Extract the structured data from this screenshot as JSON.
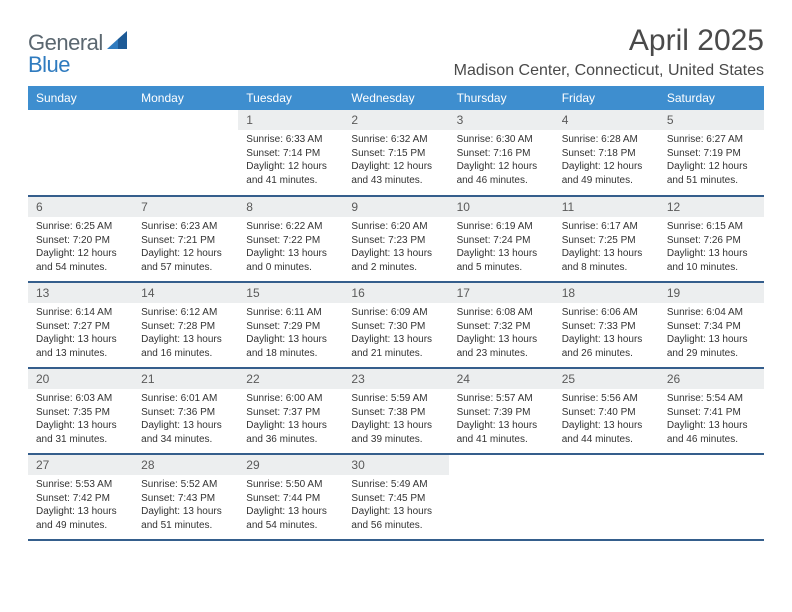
{
  "brand": {
    "text1": "General",
    "text2": "Blue"
  },
  "title": "April 2025",
  "location": "Madison Center, Connecticut, United States",
  "colors": {
    "header_bg": "#3e8ecf",
    "header_text": "#ffffff",
    "daynum_bg": "#eceeef",
    "row_border": "#355e8c",
    "logo_gray": "#5b6770",
    "logo_blue": "#2f7bbf"
  },
  "weekdays": [
    "Sunday",
    "Monday",
    "Tuesday",
    "Wednesday",
    "Thursday",
    "Friday",
    "Saturday"
  ],
  "weeks": [
    [
      {
        "n": "",
        "sunrise": "",
        "sunset": "",
        "daylight": ""
      },
      {
        "n": "",
        "sunrise": "",
        "sunset": "",
        "daylight": ""
      },
      {
        "n": "1",
        "sunrise": "Sunrise: 6:33 AM",
        "sunset": "Sunset: 7:14 PM",
        "daylight": "Daylight: 12 hours and 41 minutes."
      },
      {
        "n": "2",
        "sunrise": "Sunrise: 6:32 AM",
        "sunset": "Sunset: 7:15 PM",
        "daylight": "Daylight: 12 hours and 43 minutes."
      },
      {
        "n": "3",
        "sunrise": "Sunrise: 6:30 AM",
        "sunset": "Sunset: 7:16 PM",
        "daylight": "Daylight: 12 hours and 46 minutes."
      },
      {
        "n": "4",
        "sunrise": "Sunrise: 6:28 AM",
        "sunset": "Sunset: 7:18 PM",
        "daylight": "Daylight: 12 hours and 49 minutes."
      },
      {
        "n": "5",
        "sunrise": "Sunrise: 6:27 AM",
        "sunset": "Sunset: 7:19 PM",
        "daylight": "Daylight: 12 hours and 51 minutes."
      }
    ],
    [
      {
        "n": "6",
        "sunrise": "Sunrise: 6:25 AM",
        "sunset": "Sunset: 7:20 PM",
        "daylight": "Daylight: 12 hours and 54 minutes."
      },
      {
        "n": "7",
        "sunrise": "Sunrise: 6:23 AM",
        "sunset": "Sunset: 7:21 PM",
        "daylight": "Daylight: 12 hours and 57 minutes."
      },
      {
        "n": "8",
        "sunrise": "Sunrise: 6:22 AM",
        "sunset": "Sunset: 7:22 PM",
        "daylight": "Daylight: 13 hours and 0 minutes."
      },
      {
        "n": "9",
        "sunrise": "Sunrise: 6:20 AM",
        "sunset": "Sunset: 7:23 PM",
        "daylight": "Daylight: 13 hours and 2 minutes."
      },
      {
        "n": "10",
        "sunrise": "Sunrise: 6:19 AM",
        "sunset": "Sunset: 7:24 PM",
        "daylight": "Daylight: 13 hours and 5 minutes."
      },
      {
        "n": "11",
        "sunrise": "Sunrise: 6:17 AM",
        "sunset": "Sunset: 7:25 PM",
        "daylight": "Daylight: 13 hours and 8 minutes."
      },
      {
        "n": "12",
        "sunrise": "Sunrise: 6:15 AM",
        "sunset": "Sunset: 7:26 PM",
        "daylight": "Daylight: 13 hours and 10 minutes."
      }
    ],
    [
      {
        "n": "13",
        "sunrise": "Sunrise: 6:14 AM",
        "sunset": "Sunset: 7:27 PM",
        "daylight": "Daylight: 13 hours and 13 minutes."
      },
      {
        "n": "14",
        "sunrise": "Sunrise: 6:12 AM",
        "sunset": "Sunset: 7:28 PM",
        "daylight": "Daylight: 13 hours and 16 minutes."
      },
      {
        "n": "15",
        "sunrise": "Sunrise: 6:11 AM",
        "sunset": "Sunset: 7:29 PM",
        "daylight": "Daylight: 13 hours and 18 minutes."
      },
      {
        "n": "16",
        "sunrise": "Sunrise: 6:09 AM",
        "sunset": "Sunset: 7:30 PM",
        "daylight": "Daylight: 13 hours and 21 minutes."
      },
      {
        "n": "17",
        "sunrise": "Sunrise: 6:08 AM",
        "sunset": "Sunset: 7:32 PM",
        "daylight": "Daylight: 13 hours and 23 minutes."
      },
      {
        "n": "18",
        "sunrise": "Sunrise: 6:06 AM",
        "sunset": "Sunset: 7:33 PM",
        "daylight": "Daylight: 13 hours and 26 minutes."
      },
      {
        "n": "19",
        "sunrise": "Sunrise: 6:04 AM",
        "sunset": "Sunset: 7:34 PM",
        "daylight": "Daylight: 13 hours and 29 minutes."
      }
    ],
    [
      {
        "n": "20",
        "sunrise": "Sunrise: 6:03 AM",
        "sunset": "Sunset: 7:35 PM",
        "daylight": "Daylight: 13 hours and 31 minutes."
      },
      {
        "n": "21",
        "sunrise": "Sunrise: 6:01 AM",
        "sunset": "Sunset: 7:36 PM",
        "daylight": "Daylight: 13 hours and 34 minutes."
      },
      {
        "n": "22",
        "sunrise": "Sunrise: 6:00 AM",
        "sunset": "Sunset: 7:37 PM",
        "daylight": "Daylight: 13 hours and 36 minutes."
      },
      {
        "n": "23",
        "sunrise": "Sunrise: 5:59 AM",
        "sunset": "Sunset: 7:38 PM",
        "daylight": "Daylight: 13 hours and 39 minutes."
      },
      {
        "n": "24",
        "sunrise": "Sunrise: 5:57 AM",
        "sunset": "Sunset: 7:39 PM",
        "daylight": "Daylight: 13 hours and 41 minutes."
      },
      {
        "n": "25",
        "sunrise": "Sunrise: 5:56 AM",
        "sunset": "Sunset: 7:40 PM",
        "daylight": "Daylight: 13 hours and 44 minutes."
      },
      {
        "n": "26",
        "sunrise": "Sunrise: 5:54 AM",
        "sunset": "Sunset: 7:41 PM",
        "daylight": "Daylight: 13 hours and 46 minutes."
      }
    ],
    [
      {
        "n": "27",
        "sunrise": "Sunrise: 5:53 AM",
        "sunset": "Sunset: 7:42 PM",
        "daylight": "Daylight: 13 hours and 49 minutes."
      },
      {
        "n": "28",
        "sunrise": "Sunrise: 5:52 AM",
        "sunset": "Sunset: 7:43 PM",
        "daylight": "Daylight: 13 hours and 51 minutes."
      },
      {
        "n": "29",
        "sunrise": "Sunrise: 5:50 AM",
        "sunset": "Sunset: 7:44 PM",
        "daylight": "Daylight: 13 hours and 54 minutes."
      },
      {
        "n": "30",
        "sunrise": "Sunrise: 5:49 AM",
        "sunset": "Sunset: 7:45 PM",
        "daylight": "Daylight: 13 hours and 56 minutes."
      },
      {
        "n": "",
        "sunrise": "",
        "sunset": "",
        "daylight": ""
      },
      {
        "n": "",
        "sunrise": "",
        "sunset": "",
        "daylight": ""
      },
      {
        "n": "",
        "sunrise": "",
        "sunset": "",
        "daylight": ""
      }
    ]
  ]
}
